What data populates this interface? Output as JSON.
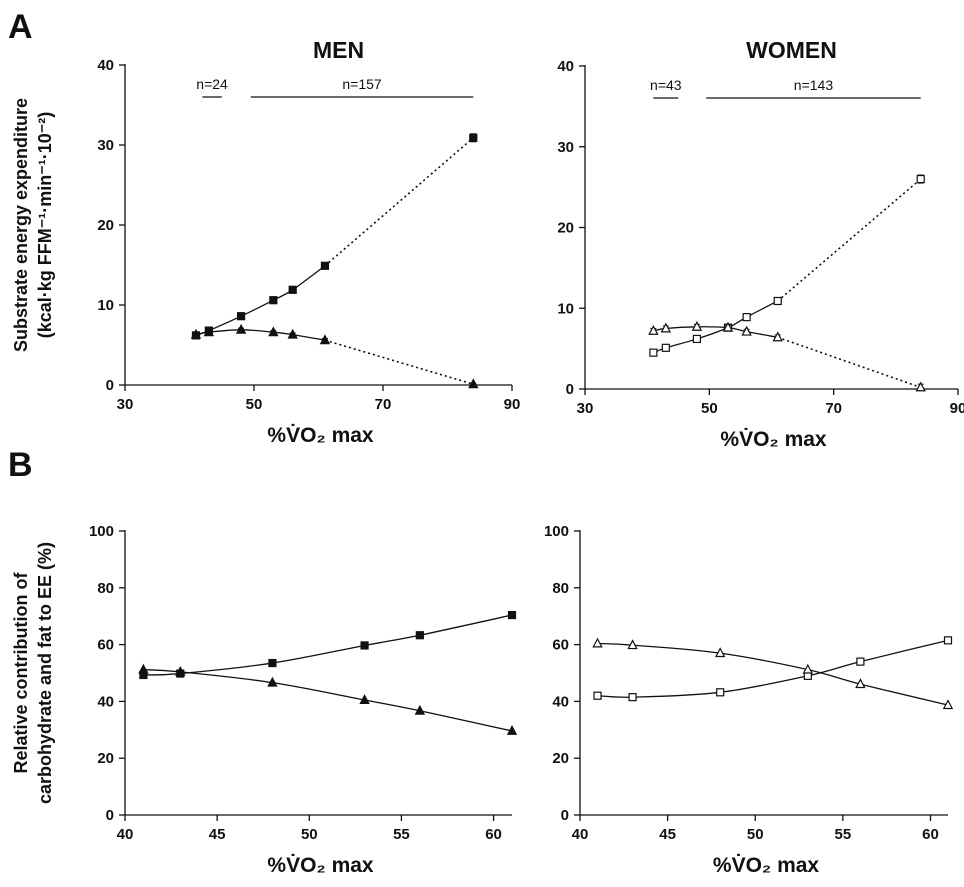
{
  "figure": {
    "panel_labels": [
      "A",
      "B"
    ],
    "ylabel_a_line1": "Substrate energy expenditure",
    "ylabel_a_line2": "(kcal·kg FFM⁻¹·min⁻¹·10⁻²)",
    "ylabel_b_line1": "Relative contribution of",
    "ylabel_b_line2": "carbohydrate and fat to EE (%)",
    "xlabel": "%V̇O₂ max"
  },
  "chart_data": [
    {
      "id": "a-men",
      "type": "line",
      "title": "MEN",
      "xlabel": "%V̇O₂ max",
      "ylabel": "Substrate energy expenditure (kcal·kg FFM⁻¹·min⁻¹·10⁻²)",
      "xlim": [
        30,
        90
      ],
      "ylim": [
        0,
        40
      ],
      "xticks": [
        30,
        50,
        70,
        90
      ],
      "yticks": [
        0,
        10,
        20,
        30,
        40
      ],
      "annotations": [
        {
          "label": "n=24",
          "x_range": [
            42,
            45
          ]
        },
        {
          "label": "n=157",
          "x_range": [
            49.5,
            84
          ]
        }
      ],
      "series": [
        {
          "marker": "square",
          "filled": true,
          "x": [
            41,
            43,
            48,
            53,
            56,
            61,
            84
          ],
          "y": [
            6.2,
            6.8,
            8.6,
            10.6,
            11.9,
            14.9,
            30.9
          ],
          "err": [
            0.3,
            0.3,
            0.3,
            0.3,
            0.3,
            0.3,
            0.5
          ],
          "dotted_from_index": 5
        },
        {
          "marker": "triangle",
          "filled": true,
          "x": [
            41,
            43,
            48,
            53,
            56,
            61,
            84
          ],
          "y": [
            6.3,
            6.6,
            6.9,
            6.6,
            6.3,
            5.6,
            0.1
          ],
          "err": [
            0.2,
            0.2,
            0.2,
            0.2,
            0.2,
            0.2,
            0.1
          ],
          "dotted_from_index": 5
        }
      ]
    },
    {
      "id": "a-women",
      "type": "line",
      "title": "WOMEN",
      "xlabel": "%V̇O₂ max",
      "xlim": [
        30,
        90
      ],
      "ylim": [
        0,
        40
      ],
      "xticks": [
        30,
        50,
        70,
        90
      ],
      "yticks": [
        0,
        10,
        20,
        30,
        40
      ],
      "annotations": [
        {
          "label": "n=43",
          "x_range": [
            41,
            45
          ]
        },
        {
          "label": "n=143",
          "x_range": [
            49.5,
            84
          ]
        }
      ],
      "series": [
        {
          "marker": "square",
          "filled": false,
          "x": [
            41,
            43,
            48,
            53,
            56,
            61,
            84
          ],
          "y": [
            4.5,
            5.1,
            6.2,
            7.6,
            8.9,
            10.9,
            26.0
          ],
          "err": [
            0.3,
            0.3,
            0.3,
            0.3,
            0.4,
            0.4,
            0.5
          ],
          "dotted_from_index": 5
        },
        {
          "marker": "triangle",
          "filled": false,
          "x": [
            41,
            43,
            48,
            53,
            56,
            61,
            84
          ],
          "y": [
            7.2,
            7.5,
            7.7,
            7.6,
            7.1,
            6.4,
            0.2
          ],
          "err": [
            0.3,
            0.3,
            0.3,
            0.3,
            0.3,
            0.3,
            0.4
          ],
          "dotted_from_index": 5
        }
      ]
    },
    {
      "id": "b-men",
      "type": "line",
      "xlabel": "%V̇O₂ max",
      "ylabel": "Relative contribution of carbohydrate and fat to EE (%)",
      "xlim": [
        40,
        61
      ],
      "ylim": [
        0,
        100
      ],
      "xticks": [
        40,
        45,
        50,
        55,
        60
      ],
      "yticks": [
        0,
        20,
        40,
        60,
        80,
        100
      ],
      "series": [
        {
          "marker": "square",
          "filled": true,
          "x": [
            41,
            43,
            48,
            53,
            56,
            61
          ],
          "y": [
            49.3,
            49.8,
            53.5,
            59.7,
            63.3,
            70.4
          ]
        },
        {
          "marker": "triangle",
          "filled": true,
          "x": [
            41,
            43,
            48,
            53,
            56,
            61
          ],
          "y": [
            51.2,
            50.4,
            46.6,
            40.5,
            36.7,
            29.6
          ]
        }
      ]
    },
    {
      "id": "b-women",
      "type": "line",
      "xlabel": "%V̇O₂ max",
      "xlim": [
        40,
        61
      ],
      "ylim": [
        0,
        100
      ],
      "xticks": [
        40,
        45,
        50,
        55,
        60
      ],
      "yticks": [
        0,
        20,
        40,
        60,
        80,
        100
      ],
      "series": [
        {
          "marker": "square",
          "filled": false,
          "x": [
            41,
            43,
            48,
            53,
            56,
            61
          ],
          "y": [
            42.0,
            41.5,
            43.2,
            49.0,
            54.0,
            61.5
          ]
        },
        {
          "marker": "triangle",
          "filled": false,
          "x": [
            41,
            43,
            48,
            53,
            56,
            61
          ],
          "y": [
            60.4,
            59.8,
            57.0,
            51.2,
            46.1,
            38.7
          ]
        }
      ]
    }
  ]
}
